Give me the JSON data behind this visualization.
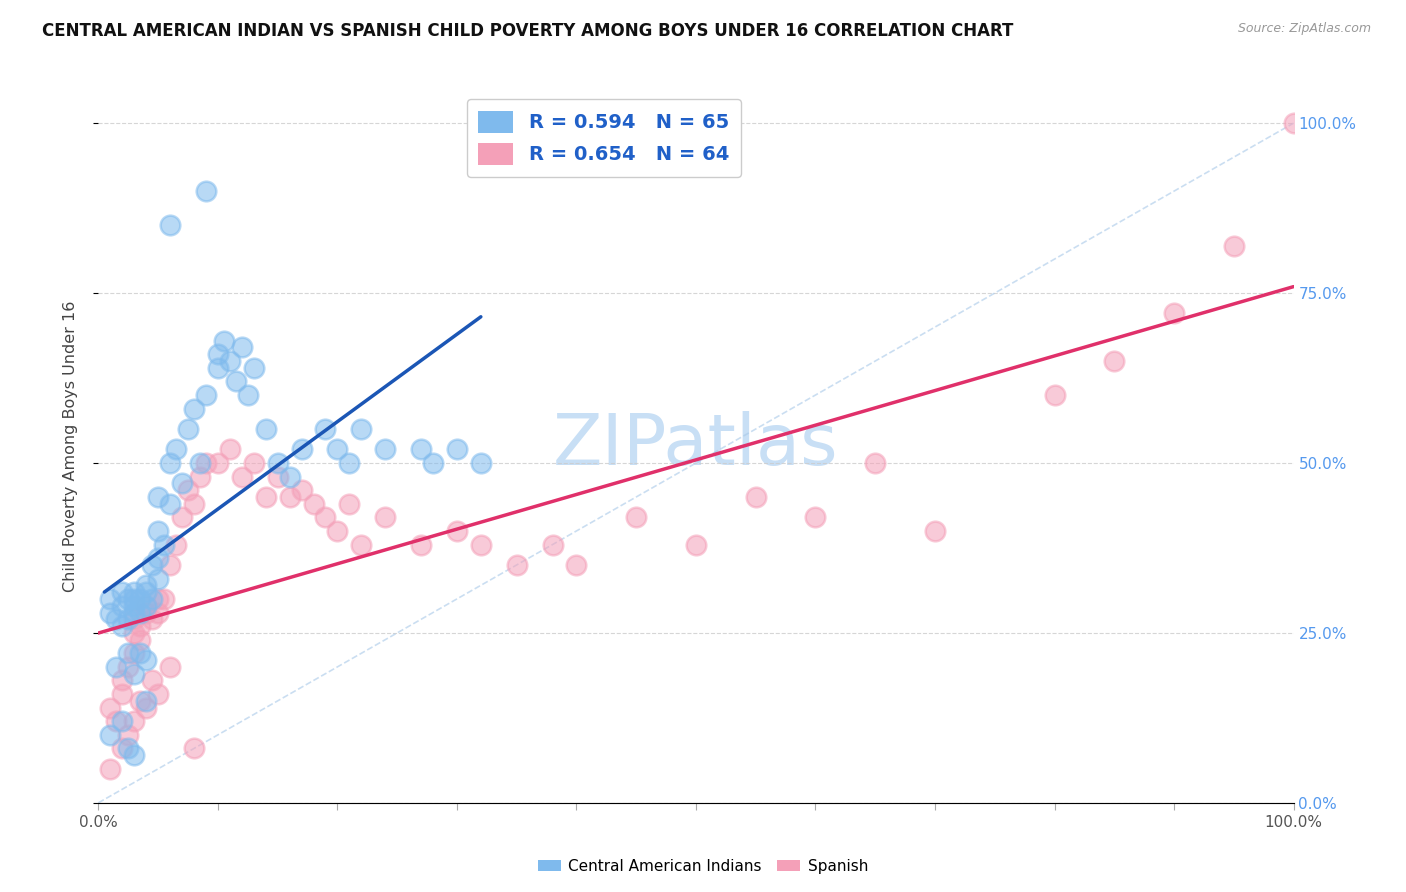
{
  "title": "CENTRAL AMERICAN INDIAN VS SPANISH CHILD POVERTY AMONG BOYS UNDER 16 CORRELATION CHART",
  "source": "Source: ZipAtlas.com",
  "ylabel": "Child Poverty Among Boys Under 16",
  "xlim": [
    0,
    1
  ],
  "ylim": [
    0,
    1.05
  ],
  "yticks": [
    0,
    0.25,
    0.5,
    0.75,
    1.0
  ],
  "ytick_labels": [
    "0.0%",
    "25.0%",
    "50.0%",
    "75.0%",
    "100.0%"
  ],
  "blue_R": 0.594,
  "blue_N": 65,
  "pink_R": 0.654,
  "pink_N": 64,
  "blue_color": "#7FBAED",
  "pink_color": "#F4A0B8",
  "blue_line_color": "#1B56B5",
  "pink_line_color": "#E0306A",
  "legend_R_color": "#2060C8",
  "watermark_color": "#C8DFF5",
  "background_color": "#FFFFFF",
  "grid_color": "#CCCCCC",
  "blue_x": [
    0.01,
    0.01,
    0.015,
    0.02,
    0.02,
    0.02,
    0.025,
    0.025,
    0.03,
    0.03,
    0.03,
    0.03,
    0.035,
    0.035,
    0.04,
    0.04,
    0.04,
    0.045,
    0.045,
    0.05,
    0.05,
    0.05,
    0.05,
    0.055,
    0.06,
    0.06,
    0.065,
    0.07,
    0.075,
    0.08,
    0.085,
    0.09,
    0.1,
    0.1,
    0.105,
    0.11,
    0.115,
    0.12,
    0.125,
    0.13,
    0.14,
    0.15,
    0.16,
    0.17,
    0.19,
    0.2,
    0.21,
    0.22,
    0.24,
    0.27,
    0.28,
    0.3,
    0.32,
    0.015,
    0.025,
    0.03,
    0.035,
    0.04,
    0.01,
    0.02,
    0.025,
    0.03,
    0.04,
    0.06,
    0.09
  ],
  "blue_y": [
    0.28,
    0.3,
    0.27,
    0.26,
    0.29,
    0.31,
    0.27,
    0.3,
    0.28,
    0.29,
    0.31,
    0.3,
    0.28,
    0.3,
    0.29,
    0.32,
    0.31,
    0.3,
    0.35,
    0.33,
    0.36,
    0.4,
    0.45,
    0.38,
    0.44,
    0.5,
    0.52,
    0.47,
    0.55,
    0.58,
    0.5,
    0.6,
    0.64,
    0.66,
    0.68,
    0.65,
    0.62,
    0.67,
    0.6,
    0.64,
    0.55,
    0.5,
    0.48,
    0.52,
    0.55,
    0.52,
    0.5,
    0.55,
    0.52,
    0.52,
    0.5,
    0.52,
    0.5,
    0.2,
    0.22,
    0.19,
    0.22,
    0.21,
    0.1,
    0.12,
    0.08,
    0.07,
    0.15,
    0.85,
    0.9
  ],
  "pink_x": [
    0.01,
    0.015,
    0.02,
    0.02,
    0.025,
    0.03,
    0.03,
    0.03,
    0.035,
    0.035,
    0.04,
    0.04,
    0.045,
    0.05,
    0.05,
    0.055,
    0.06,
    0.065,
    0.07,
    0.075,
    0.08,
    0.085,
    0.09,
    0.1,
    0.11,
    0.12,
    0.13,
    0.14,
    0.15,
    0.16,
    0.17,
    0.18,
    0.19,
    0.2,
    0.21,
    0.22,
    0.24,
    0.27,
    0.3,
    0.32,
    0.35,
    0.38,
    0.4,
    0.45,
    0.5,
    0.55,
    0.6,
    0.65,
    0.7,
    0.8,
    0.85,
    0.9,
    0.95,
    1.0,
    0.01,
    0.02,
    0.025,
    0.03,
    0.035,
    0.04,
    0.045,
    0.05,
    0.06,
    0.08
  ],
  "pink_y": [
    0.14,
    0.12,
    0.16,
    0.18,
    0.2,
    0.22,
    0.25,
    0.27,
    0.24,
    0.26,
    0.28,
    0.29,
    0.27,
    0.3,
    0.28,
    0.3,
    0.35,
    0.38,
    0.42,
    0.46,
    0.44,
    0.48,
    0.5,
    0.5,
    0.52,
    0.48,
    0.5,
    0.45,
    0.48,
    0.45,
    0.46,
    0.44,
    0.42,
    0.4,
    0.44,
    0.38,
    0.42,
    0.38,
    0.4,
    0.38,
    0.35,
    0.38,
    0.35,
    0.42,
    0.38,
    0.45,
    0.42,
    0.5,
    0.4,
    0.6,
    0.65,
    0.72,
    0.82,
    1.0,
    0.05,
    0.08,
    0.1,
    0.12,
    0.15,
    0.14,
    0.18,
    0.16,
    0.2,
    0.08
  ]
}
